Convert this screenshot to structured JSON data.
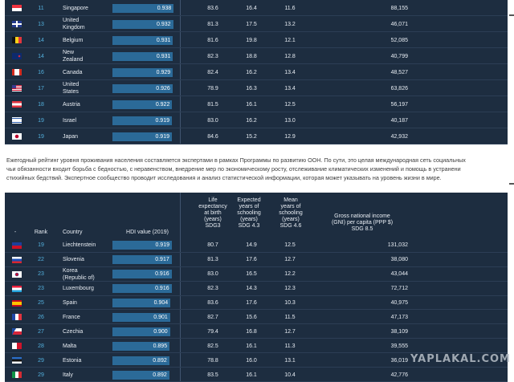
{
  "top_table": {
    "rows": [
      {
        "rank": "11",
        "country": [
          "Singapore"
        ],
        "hdi": "0.938",
        "life": "83.6",
        "expected": "16.4",
        "mean": "11.6",
        "gni": "88,155",
        "flag": "sg"
      },
      {
        "rank": "13",
        "country": [
          "United",
          "Kingdom"
        ],
        "hdi": "0.932",
        "life": "81.3",
        "expected": "17.5",
        "mean": "13.2",
        "gni": "46,071",
        "flag": "gb"
      },
      {
        "rank": "14",
        "country": [
          "Belgium"
        ],
        "hdi": "0.931",
        "life": "81.6",
        "expected": "19.8",
        "mean": "12.1",
        "gni": "52,085",
        "flag": "be"
      },
      {
        "rank": "14",
        "country": [
          "New",
          "Zealand"
        ],
        "hdi": "0.931",
        "life": "82.3",
        "expected": "18.8",
        "mean": "12.8",
        "gni": "40,799",
        "flag": "nz"
      },
      {
        "rank": "16",
        "country": [
          "Canada"
        ],
        "hdi": "0.929",
        "life": "82.4",
        "expected": "16.2",
        "mean": "13.4",
        "gni": "48,527",
        "flag": "ca"
      },
      {
        "rank": "17",
        "country": [
          "United",
          "States"
        ],
        "hdi": "0.926",
        "life": "78.9",
        "expected": "16.3",
        "mean": "13.4",
        "gni": "63,826",
        "flag": "us"
      },
      {
        "rank": "18",
        "country": [
          "Austria"
        ],
        "hdi": "0.922",
        "life": "81.5",
        "expected": "16.1",
        "mean": "12.5",
        "gni": "56,197",
        "flag": "at"
      },
      {
        "rank": "19",
        "country": [
          "Israel"
        ],
        "hdi": "0.919",
        "life": "83.0",
        "expected": "16.2",
        "mean": "13.0",
        "gni": "40,187",
        "flag": "il"
      },
      {
        "rank": "19",
        "country": [
          "Japan"
        ],
        "hdi": "0.919",
        "life": "84.6",
        "expected": "15.2",
        "mean": "12.9",
        "gni": "42,932",
        "flag": "jp"
      }
    ]
  },
  "paragraph": {
    "lines": [
      "Ежегодный рейтинг уровня проживания населения составляется экспертами в рамках Программы по развитию ООН. По сути, это целая международная сеть социальных",
      "чьи обязанности входит борьба с бедностью, с неравенством, внедрение мер по экономическому росту, отслеживание климатических изменений и помощь в устранени",
      "стихийных бедствий. Экспертное сообщество проводит исследования и анализ статистической информации, которая может указывать на уровень жизни в мире."
    ]
  },
  "bottom_table": {
    "headers": {
      "flag": "-",
      "rank": "Rank",
      "country": "Country",
      "hdi": "HDI value (2019)",
      "life": [
        "Life",
        "expectancy",
        "at birth",
        "(years)",
        "SDG3"
      ],
      "expected": [
        "Expected",
        "years of",
        "schooling",
        "(years)",
        "SDG 4.3"
      ],
      "mean": [
        "Mean",
        "years of",
        "schooling",
        "(years)",
        "SDG 4.6"
      ],
      "gni": [
        "Gross national income",
        "(GNI) per capita (PPP $)",
        "SDG 8.5"
      ]
    },
    "rows": [
      {
        "rank": "19",
        "country": [
          "Liechtenstein"
        ],
        "hdi": "0.919",
        "life": "80.7",
        "expected": "14.9",
        "mean": "12.5",
        "gni": "131,032",
        "flag": "li"
      },
      {
        "rank": "22",
        "country": [
          "Slovenia"
        ],
        "hdi": "0.917",
        "life": "81.3",
        "expected": "17.6",
        "mean": "12.7",
        "gni": "38,080",
        "flag": "si"
      },
      {
        "rank": "23",
        "country": [
          "Korea",
          "(Republic of)"
        ],
        "hdi": "0.916",
        "life": "83.0",
        "expected": "16.5",
        "mean": "12.2",
        "gni": "43,044",
        "flag": "kr"
      },
      {
        "rank": "23",
        "country": [
          "Luxembourg"
        ],
        "hdi": "0.916",
        "life": "82.3",
        "expected": "14.3",
        "mean": "12.3",
        "gni": "72,712",
        "flag": "lu"
      },
      {
        "rank": "25",
        "country": [
          "Spain"
        ],
        "hdi": "0.904",
        "life": "83.6",
        "expected": "17.6",
        "mean": "10.3",
        "gni": "40,975",
        "flag": "es"
      },
      {
        "rank": "26",
        "country": [
          "France"
        ],
        "hdi": "0.901",
        "life": "82.7",
        "expected": "15.6",
        "mean": "11.5",
        "gni": "47,173",
        "flag": "fr"
      },
      {
        "rank": "27",
        "country": [
          "Czechia"
        ],
        "hdi": "0.900",
        "life": "79.4",
        "expected": "16.8",
        "mean": "12.7",
        "gni": "38,109",
        "flag": "cz"
      },
      {
        "rank": "28",
        "country": [
          "Malta"
        ],
        "hdi": "0.895",
        "life": "82.5",
        "expected": "16.1",
        "mean": "11.3",
        "gni": "39,555",
        "flag": "mt"
      },
      {
        "rank": "29",
        "country": [
          "Estonia"
        ],
        "hdi": "0.892",
        "life": "78.8",
        "expected": "16.0",
        "mean": "13.1",
        "gni": "36,019",
        "flag": "ee"
      },
      {
        "rank": "29",
        "country": [
          "Italy"
        ],
        "hdi": "0.892",
        "life": "83.5",
        "expected": "16.1",
        "mean": "10.4",
        "gni": "42,776",
        "flag": "it"
      }
    ]
  },
  "watermark": "YAPLAKAL.COM",
  "colors": {
    "table_bg": "#1d2d40",
    "bar": "#2b6a98",
    "rank_text": "#53b0dd",
    "row_separator": "#2c3e55"
  }
}
